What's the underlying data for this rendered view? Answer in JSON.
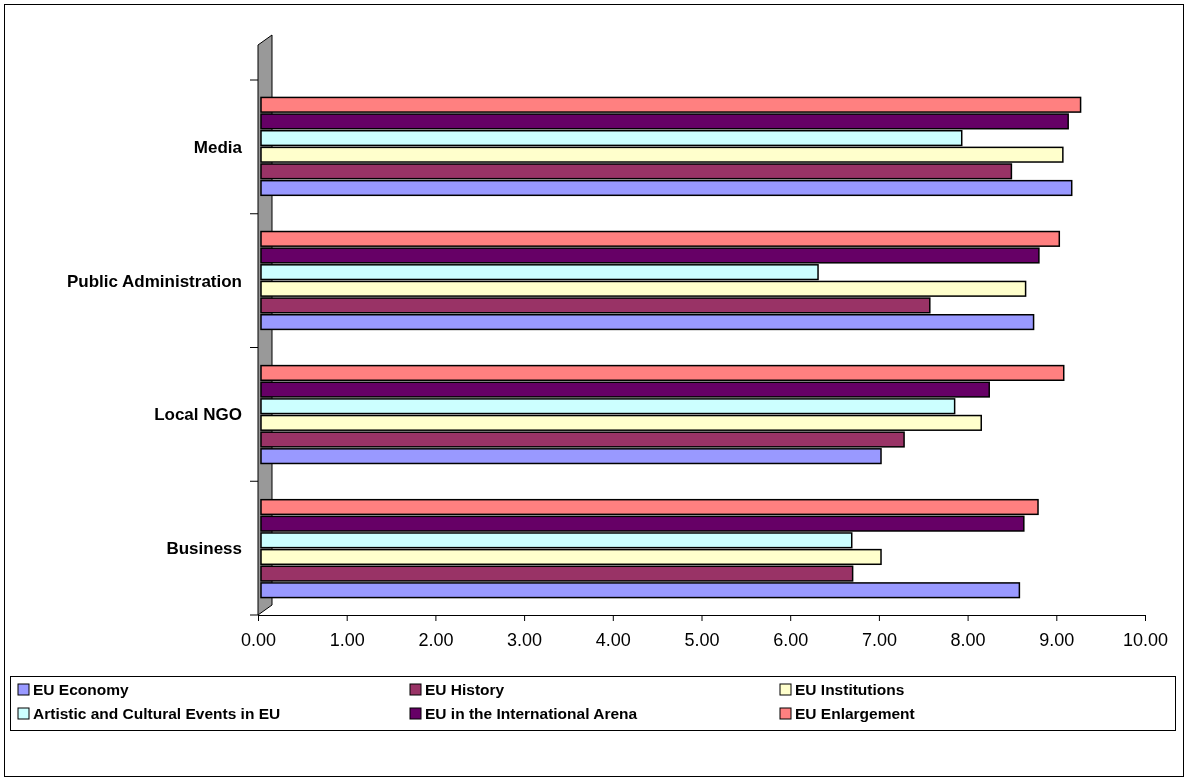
{
  "chart_data": {
    "type": "bar",
    "orientation": "horizontal",
    "categories": [
      "Media",
      "Public Administration",
      "Local NGO",
      "Business"
    ],
    "series": [
      {
        "name": "EU Economy",
        "color": "#9999ff",
        "values": [
          9.14,
          8.71,
          6.99,
          8.55
        ]
      },
      {
        "name": "EU History",
        "color": "#993366",
        "values": [
          8.46,
          7.54,
          7.25,
          6.67
        ]
      },
      {
        "name": "EU Institutions",
        "color": "#ffffcc",
        "values": [
          9.04,
          8.62,
          8.12,
          6.99
        ]
      },
      {
        "name": "Artistic and Cultural Events in EU",
        "color": "#ccffff",
        "values": [
          7.9,
          6.28,
          7.82,
          6.66
        ]
      },
      {
        "name": "EU in the International Arena",
        "color": "#660066",
        "values": [
          9.1,
          8.77,
          8.21,
          8.6
        ]
      },
      {
        "name": "EU Enlargement",
        "color": "#ff8080",
        "values": [
          9.24,
          9.0,
          9.05,
          8.76
        ]
      }
    ],
    "xlim": [
      0,
      10
    ],
    "xticks": [
      {
        "value": 0,
        "label": "0.00"
      },
      {
        "value": 1,
        "label": "1.00"
      },
      {
        "value": 2,
        "label": "2.00"
      },
      {
        "value": 3,
        "label": "3.00"
      },
      {
        "value": 4,
        "label": "4.00"
      },
      {
        "value": 5,
        "label": "5.00"
      },
      {
        "value": 6,
        "label": "6.00"
      },
      {
        "value": 7,
        "label": "7.00"
      },
      {
        "value": 8,
        "label": "8.00"
      },
      {
        "value": 9,
        "label": "9.00"
      },
      {
        "value": 10,
        "label": "10.00"
      }
    ],
    "grid": false,
    "legend": "bottom"
  }
}
